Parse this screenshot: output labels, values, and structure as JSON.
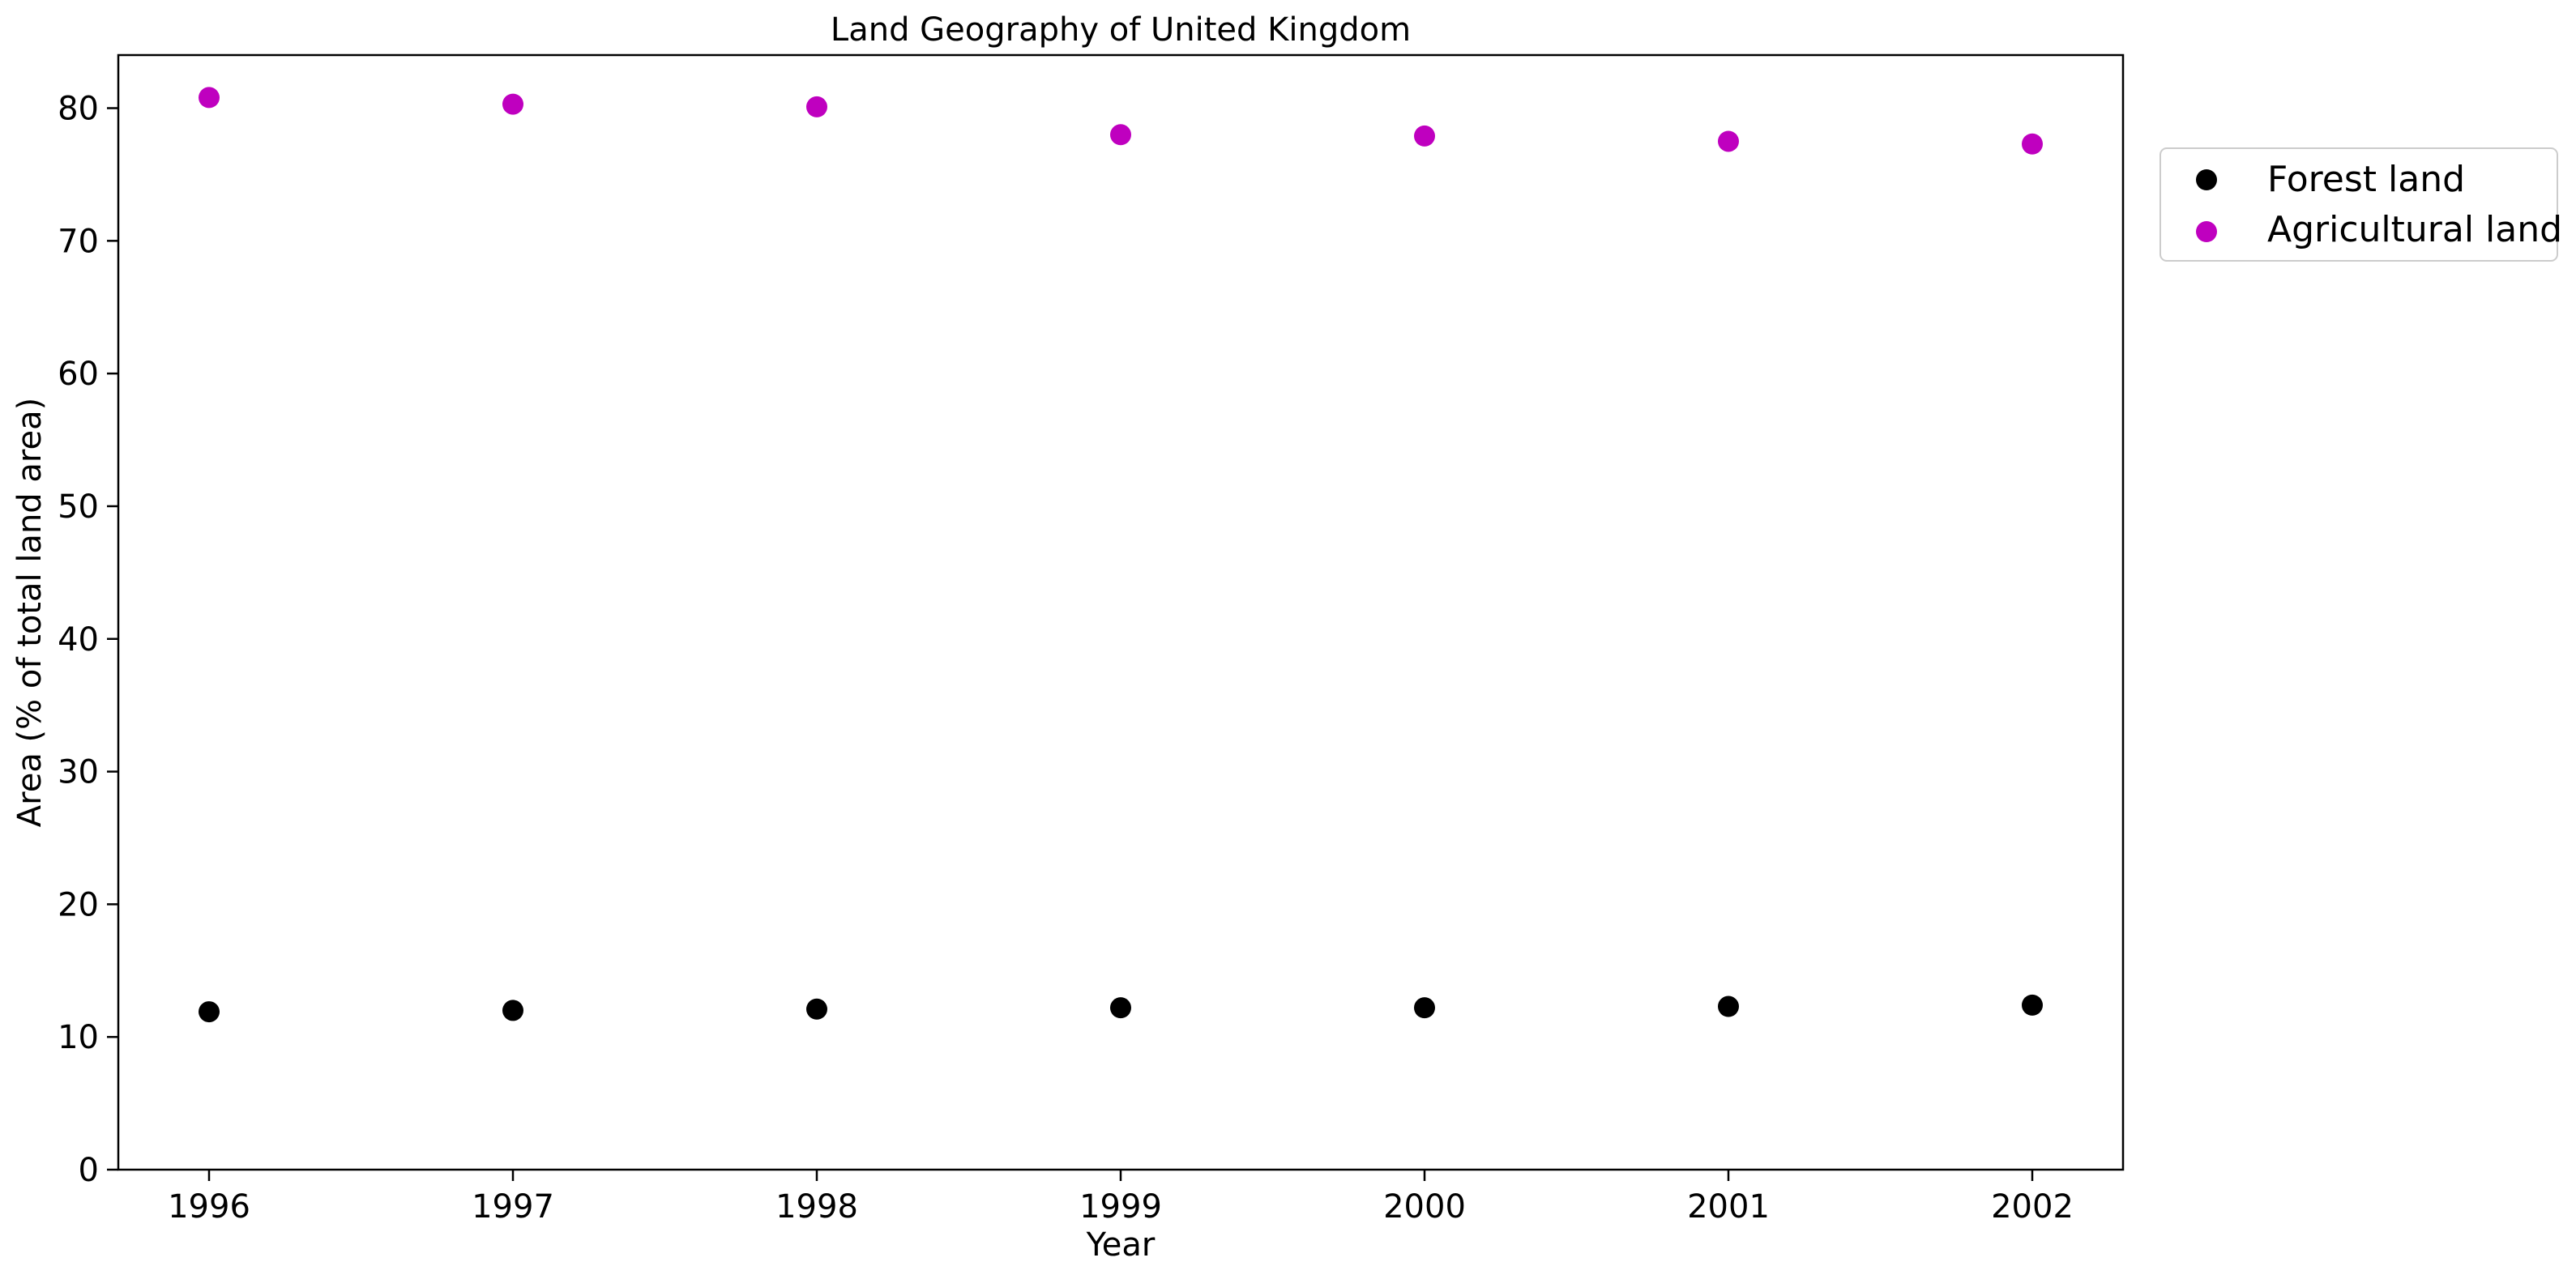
{
  "chart_data": {
    "type": "scatter",
    "title": "Land Geography of United Kingdom",
    "xlabel": "Year",
    "ylabel": "Area (% of total land area)",
    "x": [
      "1996",
      "1997",
      "1998",
      "1999",
      "2000",
      "2001",
      "2002"
    ],
    "ylim": [
      0,
      84
    ],
    "yticks": [
      "0",
      "10",
      "20",
      "30",
      "40",
      "50",
      "60",
      "70",
      "80"
    ],
    "grid": false,
    "legend_position": "outside-right-top",
    "series": [
      {
        "name": "Forest land",
        "color": "#000000",
        "values": [
          11.9,
          12.0,
          12.1,
          12.2,
          12.2,
          12.3,
          12.4
        ]
      },
      {
        "name": "Agricultural land",
        "color": "#bf00bf",
        "values": [
          80.8,
          80.3,
          80.1,
          78.0,
          77.9,
          77.5,
          77.3
        ]
      }
    ]
  }
}
